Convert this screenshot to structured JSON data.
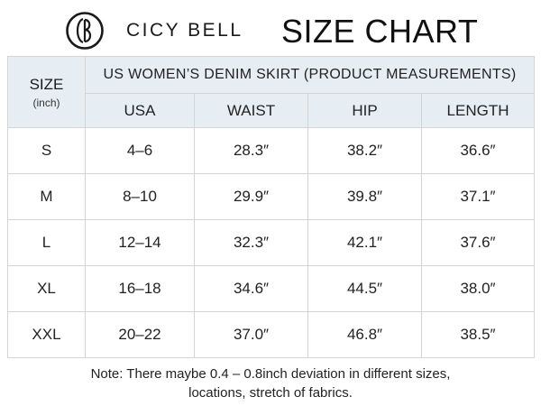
{
  "header": {
    "brand": "CICY BELL",
    "title": "SIZE CHART"
  },
  "table": {
    "size_label": "SIZE",
    "size_unit": "(inch)",
    "group_title": "US WOMEN’S DENIM SKIRT (PRODUCT MEASUREMENTS)",
    "columns": [
      "USA",
      "WAIST",
      "HIP",
      "LENGTH"
    ],
    "rows": [
      {
        "size": "S",
        "usa": "4–6",
        "waist": "28.3″",
        "hip": "38.2″",
        "length": "36.6″"
      },
      {
        "size": "M",
        "usa": "8–10",
        "waist": "29.9″",
        "hip": "39.8″",
        "length": "37.1″"
      },
      {
        "size": "L",
        "usa": "12–14",
        "waist": "32.3″",
        "hip": "42.1″",
        "length": "37.6″"
      },
      {
        "size": "XL",
        "usa": "16–18",
        "waist": "34.6″",
        "hip": "44.5″",
        "length": "38.0″"
      },
      {
        "size": "XXL",
        "usa": "20–22",
        "waist": "37.0″",
        "hip": "46.8″",
        "length": "38.5″"
      }
    ]
  },
  "note": {
    "line1": "Note: There maybe 0.4 – 0.8inch deviation in different sizes,",
    "line2": "locations, stretch of fabrics."
  },
  "colors": {
    "header_bg": "#e6eef3",
    "border": "#d4d4d4"
  }
}
